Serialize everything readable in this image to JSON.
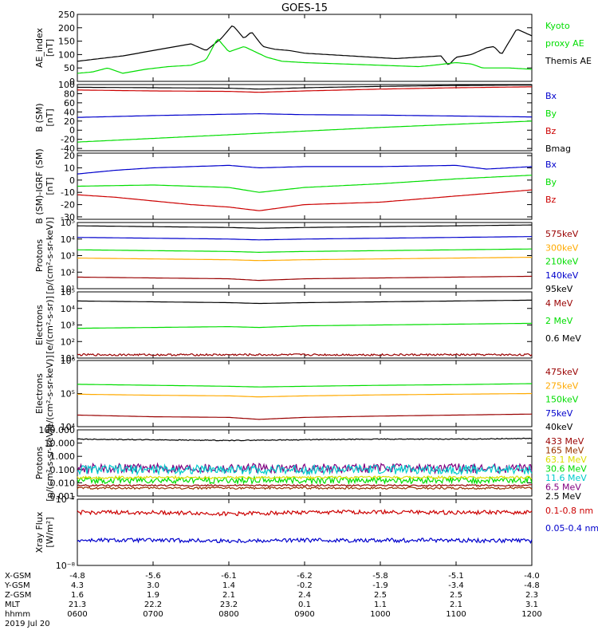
{
  "title": "GOES-15",
  "x_tick_labels": [
    "0600",
    "0700",
    "0800",
    "0900",
    "1000",
    "1100",
    "1200"
  ],
  "ephemeris": {
    "labels": [
      "X-GSM",
      "Y-GSM",
      "Z-GSM",
      "MLT",
      "hhmm",
      "2019 Jul 20"
    ],
    "rows": [
      [
        "-4.8",
        "-5.6",
        "-6.1",
        "-6.2",
        "-5.8",
        "-5.1",
        "-4.0"
      ],
      [
        "4.3",
        "3.0",
        "1.4",
        "-0.2",
        "-1.9",
        "-3.4",
        "-4.8"
      ],
      [
        "1.6",
        "1.9",
        "2.1",
        "2.4",
        "2.5",
        "2.5",
        "2.3"
      ],
      [
        "21.3",
        "22.2",
        "23.2",
        "0.1",
        "1.1",
        "2.1",
        "3.1"
      ],
      [
        "0600",
        "0700",
        "0800",
        "0900",
        "1000",
        "1100",
        "1200"
      ]
    ]
  },
  "colors": {
    "black": "#000000",
    "green": "#00dd00",
    "blue": "#0000cc",
    "red": "#cc0000",
    "darkred": "#990000",
    "orange": "#ffaa00",
    "yellow": "#dddd00",
    "cyan": "#00cccc",
    "purple": "#800080",
    "brown": "#993300"
  },
  "chart_data": [
    {
      "type": "line",
      "ylabel": "AE_index\n[nT]",
      "scale": "linear",
      "ylim": [
        0,
        250
      ],
      "ticks": [
        {
          "v": 0,
          "t": "0"
        },
        {
          "v": 50,
          "t": "50"
        },
        {
          "v": 100,
          "t": "100"
        },
        {
          "v": 150,
          "t": "150"
        },
        {
          "v": 200,
          "t": "200"
        },
        {
          "v": 250,
          "t": "250"
        }
      ],
      "legend": [
        {
          "text": "Kyoto",
          "color": "green"
        },
        {
          "text": "proxy AE",
          "color": "green"
        },
        {
          "text": "Themis AE",
          "color": "black"
        }
      ],
      "series": [
        {
          "name": "Themis AE",
          "color": "black",
          "x": [
            0,
            0.3,
            0.6,
            0.9,
            1.2,
            1.5,
            1.7,
            1.9,
            2.05,
            2.2,
            2.3,
            2.45,
            2.6,
            2.8,
            3.0,
            3.3,
            3.6,
            3.9,
            4.2,
            4.5,
            4.8,
            4.9,
            5.0,
            5.2,
            5.4,
            5.5,
            5.6,
            5.8,
            6.0
          ],
          "y": [
            75,
            85,
            95,
            110,
            125,
            140,
            115,
            160,
            210,
            160,
            185,
            130,
            120,
            115,
            105,
            100,
            95,
            90,
            85,
            90,
            95,
            60,
            90,
            100,
            125,
            130,
            100,
            195,
            170
          ]
        },
        {
          "name": "Kyoto proxy AE",
          "color": "green",
          "x": [
            0,
            0.2,
            0.4,
            0.6,
            0.9,
            1.2,
            1.5,
            1.7,
            1.85,
            2.0,
            2.2,
            2.35,
            2.5,
            2.7,
            3.0,
            3.5,
            4.0,
            4.5,
            4.7,
            5.0,
            5.2,
            5.35,
            5.5,
            5.7,
            6.0
          ],
          "y": [
            30,
            35,
            50,
            30,
            45,
            55,
            60,
            80,
            160,
            110,
            130,
            110,
            90,
            75,
            70,
            65,
            60,
            55,
            60,
            70,
            65,
            50,
            50,
            50,
            45
          ]
        }
      ]
    },
    {
      "type": "line",
      "ylabel": "B (SM)\n[nT]",
      "scale": "linear",
      "ylim": [
        -45,
        100
      ],
      "ticks": [
        {
          "v": -40,
          "t": "-40"
        },
        {
          "v": -20,
          "t": "-20"
        },
        {
          "v": 0,
          "t": "0"
        },
        {
          "v": 20,
          "t": "20"
        },
        {
          "v": 40,
          "t": "40"
        },
        {
          "v": 60,
          "t": "60"
        },
        {
          "v": 80,
          "t": "80"
        },
        {
          "v": 100,
          "t": "100"
        }
      ],
      "legend": [
        {
          "text": "Bx",
          "color": "blue"
        },
        {
          "text": "By",
          "color": "green"
        },
        {
          "text": "Bz",
          "color": "red"
        },
        {
          "text": "Bmag",
          "color": "black"
        }
      ],
      "series": [
        {
          "name": "Bmag",
          "color": "black",
          "x": [
            0,
            1,
            2,
            2.4,
            3,
            4,
            5,
            6
          ],
          "y": [
            94,
            93,
            92,
            90,
            93,
            96,
            98,
            99
          ]
        },
        {
          "name": "Bz",
          "color": "red",
          "x": [
            0,
            1,
            2,
            2.4,
            3,
            4,
            5,
            6
          ],
          "y": [
            88,
            86,
            85,
            83,
            86,
            90,
            93,
            95
          ]
        },
        {
          "name": "Bx",
          "color": "blue",
          "x": [
            0,
            1,
            2,
            2.4,
            3,
            4,
            5,
            6
          ],
          "y": [
            28,
            32,
            35,
            36,
            34,
            33,
            31,
            29
          ]
        },
        {
          "name": "By",
          "color": "green",
          "x": [
            0,
            1,
            2,
            3,
            4,
            5,
            6
          ],
          "y": [
            -26,
            -18,
            -10,
            -2,
            6,
            13,
            20
          ]
        }
      ]
    },
    {
      "type": "line",
      "ylabel": "B (SM)-IGRF (SM)\n[nT]",
      "scale": "linear",
      "ylim": [
        -32,
        22
      ],
      "ticks": [
        {
          "v": -30,
          "t": "-30"
        },
        {
          "v": -20,
          "t": "-20"
        },
        {
          "v": -10,
          "t": "-10"
        },
        {
          "v": 0,
          "t": "0"
        },
        {
          "v": 10,
          "t": "10"
        },
        {
          "v": 20,
          "t": "20"
        }
      ],
      "legend": [
        {
          "text": "Bx",
          "color": "blue"
        },
        {
          "text": "By",
          "color": "green"
        },
        {
          "text": "Bz",
          "color": "red"
        }
      ],
      "series": [
        {
          "name": "Bx",
          "color": "blue",
          "x": [
            0,
            0.5,
            1,
            1.5,
            2,
            2.4,
            3,
            4,
            5,
            5.4,
            6
          ],
          "y": [
            5,
            8,
            10,
            11,
            12,
            10,
            11,
            11,
            12,
            9,
            11
          ]
        },
        {
          "name": "By",
          "color": "green",
          "x": [
            0,
            1,
            2,
            2.4,
            3,
            4,
            5,
            6
          ],
          "y": [
            -5,
            -4,
            -6,
            -10,
            -6,
            -3,
            1,
            4
          ]
        },
        {
          "name": "Bz",
          "color": "red",
          "x": [
            0,
            0.5,
            1,
            1.5,
            2,
            2.4,
            3,
            4,
            5,
            6
          ],
          "y": [
            -12,
            -14,
            -17,
            -20,
            -22,
            -25,
            -20,
            -18,
            -13,
            -8
          ]
        }
      ]
    },
    {
      "type": "line",
      "ylabel": "Protons\n[p/(cm²-s-sr-keV)]",
      "scale": "log",
      "ylim": [
        1,
        5
      ],
      "ticks": [
        {
          "v": 1,
          "t": "10¹"
        },
        {
          "v": 2,
          "t": "10²"
        },
        {
          "v": 3,
          "t": "10³"
        },
        {
          "v": 4,
          "t": "10⁴"
        },
        {
          "v": 5,
          "t": "10⁵"
        }
      ],
      "legend": [
        {
          "text": "575keV",
          "color": "darkred"
        },
        {
          "text": "300keV",
          "color": "orange"
        },
        {
          "text": "210keV",
          "color": "green"
        },
        {
          "text": "140keV",
          "color": "blue"
        },
        {
          "text": "95keV",
          "color": "black"
        }
      ],
      "series": [
        {
          "name": "95keV",
          "color": "black",
          "x": [
            0,
            1,
            2,
            2.4,
            3,
            4,
            5,
            6
          ],
          "y": [
            4.8,
            4.75,
            4.7,
            4.65,
            4.7,
            4.75,
            4.8,
            4.85
          ]
        },
        {
          "name": "140keV",
          "color": "blue",
          "x": [
            0,
            1,
            2,
            2.4,
            3,
            4,
            5,
            6
          ],
          "y": [
            4.1,
            4.05,
            4.0,
            3.95,
            4.0,
            4.05,
            4.1,
            4.15
          ]
        },
        {
          "name": "210keV",
          "color": "green",
          "x": [
            0,
            1,
            2,
            2.4,
            3,
            4,
            5,
            6
          ],
          "y": [
            3.35,
            3.3,
            3.25,
            3.2,
            3.25,
            3.3,
            3.35,
            3.4
          ]
        },
        {
          "name": "300keV",
          "color": "orange",
          "x": [
            0,
            1,
            2,
            2.4,
            3,
            4,
            5,
            6
          ],
          "y": [
            2.85,
            2.8,
            2.75,
            2.7,
            2.75,
            2.8,
            2.85,
            2.9
          ]
        },
        {
          "name": "575keV",
          "color": "darkred",
          "x": [
            0,
            1,
            2,
            2.4,
            3,
            4,
            5,
            6
          ],
          "y": [
            1.7,
            1.65,
            1.6,
            1.5,
            1.6,
            1.65,
            1.7,
            1.75
          ]
        }
      ]
    },
    {
      "type": "line",
      "ylabel": "Electrons\n[e/(cm²-s-sr)]",
      "scale": "log",
      "ylim": [
        1,
        5
      ],
      "ticks": [
        {
          "v": 1,
          "t": "10¹"
        },
        {
          "v": 2,
          "t": "10²"
        },
        {
          "v": 3,
          "t": "10³"
        },
        {
          "v": 4,
          "t": "10⁴"
        },
        {
          "v": 5,
          "t": "10⁵"
        }
      ],
      "legend": [
        {
          "text": "4 MeV",
          "color": "darkred"
        },
        {
          "text": "2 MeV",
          "color": "green"
        },
        {
          "text": "0.6 MeV",
          "color": "black"
        }
      ],
      "series": [
        {
          "name": "0.6 MeV",
          "color": "black",
          "x": [
            0,
            1,
            2,
            2.4,
            3,
            4,
            5,
            6
          ],
          "y": [
            4.45,
            4.4,
            4.35,
            4.3,
            4.35,
            4.4,
            4.45,
            4.5
          ]
        },
        {
          "name": "2 MeV",
          "color": "green",
          "x": [
            0,
            1,
            2,
            2.4,
            3,
            4,
            5,
            6
          ],
          "y": [
            2.8,
            2.85,
            2.9,
            2.85,
            2.95,
            3.0,
            3.05,
            3.1
          ]
        },
        {
          "name": "4 MeV",
          "color": "darkred",
          "x": [
            0,
            1,
            2,
            3,
            4,
            5,
            6
          ],
          "y": [
            1.2,
            1.2,
            1.2,
            1.2,
            1.2,
            1.2,
            1.2
          ],
          "noise": 0.06
        }
      ]
    },
    {
      "type": "line",
      "ylabel": "Electrons\n[e/(cm²-s-sr-keV)]",
      "scale": "log",
      "ylim": [
        4,
        6
      ],
      "ticks": [
        {
          "v": 4,
          "t": "10⁴"
        },
        {
          "v": 5,
          "t": "10⁵"
        },
        {
          "v": 6,
          "t": "10⁶"
        }
      ],
      "legend": [
        {
          "text": "475keV",
          "color": "darkred"
        },
        {
          "text": "275keV",
          "color": "orange"
        },
        {
          "text": "150keV",
          "color": "green"
        },
        {
          "text": "75keV",
          "color": "blue"
        },
        {
          "text": "40keV",
          "color": "black"
        }
      ],
      "series": [
        {
          "name": "475keV",
          "color": "darkred",
          "x": [
            0,
            1,
            2,
            2.4,
            3,
            4,
            5,
            6
          ],
          "y": [
            4.35,
            4.3,
            4.28,
            4.22,
            4.28,
            4.32,
            4.35,
            4.38
          ]
        },
        {
          "name": "275keV",
          "color": "orange",
          "x": [
            0,
            1,
            2,
            2.4,
            3,
            4,
            5,
            6
          ],
          "y": [
            4.98,
            4.95,
            4.93,
            4.9,
            4.93,
            4.96,
            4.98,
            5.0
          ]
        },
        {
          "name": "150keV",
          "color": "green",
          "x": [
            0,
            1,
            2,
            2.4,
            3,
            4,
            5,
            6
          ],
          "y": [
            5.28,
            5.25,
            5.22,
            5.2,
            5.22,
            5.25,
            5.27,
            5.3
          ]
        }
      ]
    },
    {
      "type": "line",
      "ylabel": "Protons\n[p/(cm²-s-sr-keV)]",
      "scale": "log",
      "ylim": [
        -3,
        2
      ],
      "ticks": [
        {
          "v": -3,
          "t": "0.001"
        },
        {
          "v": -2,
          "t": "0.010"
        },
        {
          "v": -1,
          "t": "0.100"
        },
        {
          "v": 0,
          "t": "1.000"
        },
        {
          "v": 1,
          "t": "10.000"
        },
        {
          "v": 2,
          "t": "100.000"
        }
      ],
      "legend": [
        {
          "text": "433 MeV",
          "color": "darkred"
        },
        {
          "text": "165 MeV",
          "color": "brown"
        },
        {
          "text": "63.1 MeV",
          "color": "yellow"
        },
        {
          "text": "30.6 MeV",
          "color": "green"
        },
        {
          "text": "11.6 MeV",
          "color": "cyan"
        },
        {
          "text": "6.5 MeV",
          "color": "purple"
        },
        {
          "text": "2.5 MeV",
          "color": "black"
        }
      ],
      "series": [
        {
          "name": "2.5 MeV",
          "color": "black",
          "x": [
            0,
            1,
            2,
            3,
            4,
            5,
            6
          ],
          "y": [
            1.3,
            1.25,
            1.2,
            1.25,
            1.3,
            1.3,
            1.35
          ],
          "noise": 0.03
        },
        {
          "name": "6.5 MeV",
          "color": "purple",
          "x": [
            0,
            6
          ],
          "y": [
            -0.9,
            -0.9
          ],
          "noise": 0.35
        },
        {
          "name": "11.6 MeV",
          "color": "cyan",
          "x": [
            0,
            6
          ],
          "y": [
            -1.0,
            -1.0
          ],
          "noise": 0.35
        },
        {
          "name": "30.6 MeV",
          "color": "green",
          "x": [
            0,
            6
          ],
          "y": [
            -1.8,
            -1.8
          ],
          "noise": 0.25
        },
        {
          "name": "63.1 MeV",
          "color": "yellow",
          "x": [
            0,
            6
          ],
          "y": [
            -1.6,
            -1.6
          ],
          "noise": 0.1
        },
        {
          "name": "165 MeV",
          "color": "brown",
          "x": [
            0,
            6
          ],
          "y": [
            -2.4,
            -2.4
          ],
          "noise": 0.08
        },
        {
          "name": "433 MeV",
          "color": "darkred",
          "x": [
            0,
            6
          ],
          "y": [
            -2.2,
            -2.2
          ],
          "noise": 0.06
        }
      ]
    },
    {
      "type": "line",
      "ylabel": "Xray Flux\n[W/m²]",
      "scale": "log",
      "ylim": [
        -8,
        -7
      ],
      "ticks": [
        {
          "v": -8,
          "t": "10⁻⁸"
        },
        {
          "v": -7,
          "t": "10⁻⁷"
        }
      ],
      "legend": [
        {
          "text": "0.1-0.8 nm",
          "color": "red"
        },
        {
          "text": "0.05-0.4 nm",
          "color": "blue"
        }
      ],
      "series": [
        {
          "name": "0.1-0.8 nm",
          "color": "red",
          "x": [
            0,
            1,
            2,
            3,
            4,
            5,
            6
          ],
          "y": [
            -7.2,
            -7.2,
            -7.22,
            -7.2,
            -7.19,
            -7.2,
            -7.2
          ],
          "noise": 0.03
        },
        {
          "name": "0.05-0.4 nm",
          "color": "blue",
          "x": [
            0,
            1,
            2,
            3,
            4,
            5,
            6
          ],
          "y": [
            -7.62,
            -7.62,
            -7.63,
            -7.62,
            -7.62,
            -7.62,
            -7.63
          ],
          "noise": 0.03
        }
      ]
    }
  ]
}
